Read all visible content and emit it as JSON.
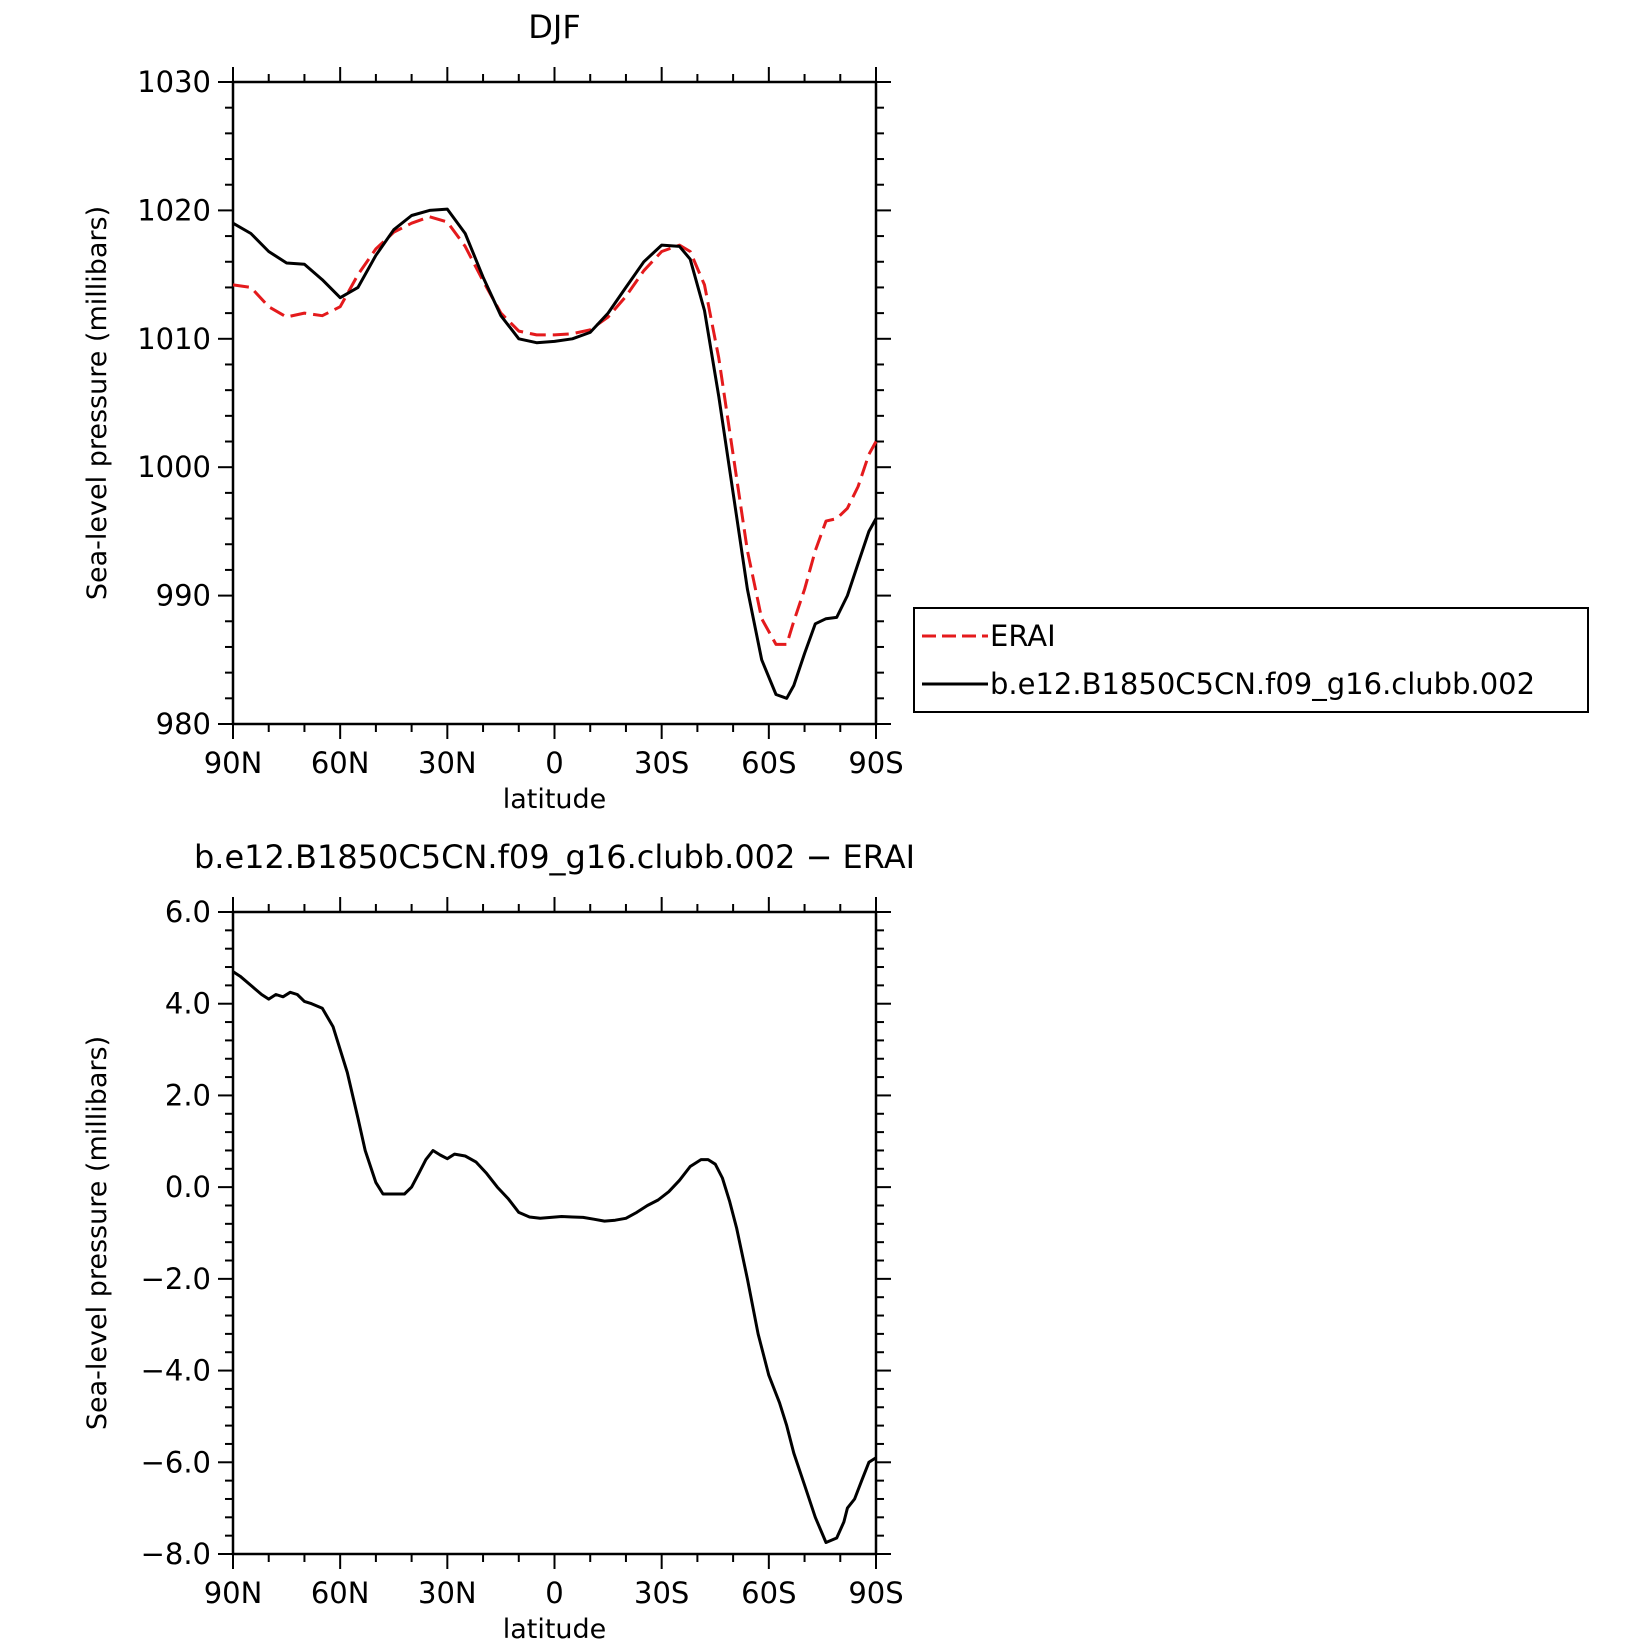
{
  "chart_data": [
    {
      "type": "line",
      "title": "DJF",
      "xlabel": "latitude",
      "ylabel": "Sea-level pressure (millibars)",
      "xlim": [
        90,
        -90
      ],
      "ylim": [
        980,
        1030
      ],
      "x_ticks": [
        {
          "value": 90,
          "label": "90N"
        },
        {
          "value": 60,
          "label": "60N"
        },
        {
          "value": 30,
          "label": "30N"
        },
        {
          "value": 0,
          "label": "0"
        },
        {
          "value": -30,
          "label": "30S"
        },
        {
          "value": -60,
          "label": "60S"
        },
        {
          "value": -90,
          "label": "90S"
        }
      ],
      "y_ticks": [
        {
          "value": 1030,
          "label": "1030"
        },
        {
          "value": 1020,
          "label": "1020"
        },
        {
          "value": 1010,
          "label": "1010"
        },
        {
          "value": 1000,
          "label": "1000"
        },
        {
          "value": 990,
          "label": "990"
        },
        {
          "value": 980,
          "label": "980"
        }
      ],
      "legend": "right",
      "series": [
        {
          "name": "ERAI",
          "color": "#e41a1c",
          "dash": "dashed",
          "x": [
            90,
            85,
            80,
            75,
            70,
            65,
            60,
            55,
            50,
            45,
            40,
            35,
            30,
            25,
            20,
            15,
            10,
            5,
            0,
            -5,
            -10,
            -15,
            -20,
            -25,
            -30,
            -35,
            -38,
            -42,
            -46,
            -50,
            -54,
            -58,
            -62,
            -65,
            -67,
            -70,
            -73,
            -76,
            -79,
            -82,
            -85,
            -88,
            -90
          ],
          "y": [
            1014.2,
            1014.0,
            1012.5,
            1011.7,
            1012.0,
            1011.8,
            1012.5,
            1015.0,
            1017.0,
            1018.3,
            1019.0,
            1019.5,
            1019.1,
            1017.2,
            1014.5,
            1012.0,
            1010.6,
            1010.3,
            1010.3,
            1010.4,
            1010.7,
            1011.7,
            1013.3,
            1015.3,
            1016.8,
            1017.3,
            1016.8,
            1014.2,
            1008.5,
            1001.0,
            993.5,
            988.2,
            986.2,
            986.2,
            988.0,
            990.5,
            993.5,
            995.8,
            996.0,
            996.8,
            998.5,
            1001.0,
            1002.0
          ]
        },
        {
          "name": "b.e12.B1850C5CN.f09_g16.clubb.002",
          "color": "#000000",
          "dash": "solid",
          "x": [
            90,
            85,
            80,
            75,
            70,
            65,
            60,
            55,
            50,
            45,
            40,
            35,
            30,
            25,
            20,
            15,
            10,
            5,
            0,
            -5,
            -10,
            -15,
            -20,
            -25,
            -30,
            -35,
            -38,
            -42,
            -46,
            -50,
            -54,
            -58,
            -62,
            -65,
            -67,
            -70,
            -73,
            -76,
            -79,
            -82,
            -85,
            -88,
            -90
          ],
          "y": [
            1019.0,
            1018.2,
            1016.8,
            1015.9,
            1015.8,
            1014.6,
            1013.2,
            1014.0,
            1016.5,
            1018.5,
            1019.6,
            1020.0,
            1020.1,
            1018.2,
            1014.8,
            1011.8,
            1010.0,
            1009.7,
            1009.8,
            1010.0,
            1010.5,
            1012.0,
            1014.0,
            1016.0,
            1017.3,
            1017.2,
            1016.2,
            1012.2,
            1005.5,
            998.0,
            990.5,
            985.0,
            982.3,
            982.0,
            983.0,
            985.5,
            987.8,
            988.2,
            988.3,
            990.0,
            992.5,
            995.0,
            996.0
          ]
        }
      ]
    },
    {
      "type": "line",
      "title": "b.e12.B1850C5CN.f09_g16.clubb.002 − ERAI",
      "xlabel": "latitude",
      "ylabel": "Sea-level pressure (millibars)",
      "xlim": [
        90,
        -90
      ],
      "ylim": [
        -8.0,
        6.0
      ],
      "x_ticks": [
        {
          "value": 90,
          "label": "90N"
        },
        {
          "value": 60,
          "label": "60N"
        },
        {
          "value": 30,
          "label": "30N"
        },
        {
          "value": 0,
          "label": "0"
        },
        {
          "value": -30,
          "label": "30S"
        },
        {
          "value": -60,
          "label": "60S"
        },
        {
          "value": -90,
          "label": "90S"
        }
      ],
      "y_ticks": [
        {
          "value": 6.0,
          "label": "6.0"
        },
        {
          "value": 4.0,
          "label": "4.0"
        },
        {
          "value": 2.0,
          "label": "2.0"
        },
        {
          "value": 0.0,
          "label": "0.0"
        },
        {
          "value": -2.0,
          "label": "−2.0"
        },
        {
          "value": -4.0,
          "label": "−4.0"
        },
        {
          "value": -6.0,
          "label": "−6.0"
        },
        {
          "value": -8.0,
          "label": "−8.0"
        }
      ],
      "series": [
        {
          "color": "#000000",
          "dash": "solid",
          "x": [
            90,
            88,
            85,
            82,
            80,
            78,
            76,
            74,
            72,
            70,
            68,
            65,
            62,
            58,
            55,
            53,
            50,
            48,
            45,
            42,
            40,
            38,
            36,
            34,
            32,
            30,
            28,
            25,
            22,
            19,
            16,
            13,
            10,
            7,
            4,
            1,
            -2,
            -5,
            -8,
            -11,
            -14,
            -17,
            -20,
            -23,
            -26,
            -29,
            -32,
            -35,
            -38,
            -41,
            -43,
            -45,
            -47,
            -49,
            -51,
            -54,
            -57,
            -60,
            -63,
            -65,
            -67,
            -70,
            -73,
            -76,
            -79,
            -81,
            -82,
            -84,
            -86,
            -88,
            -90
          ],
          "y": [
            4.7,
            4.6,
            4.4,
            4.2,
            4.1,
            4.2,
            4.15,
            4.25,
            4.2,
            4.05,
            4.0,
            3.9,
            3.5,
            2.5,
            1.5,
            0.8,
            0.1,
            -0.15,
            -0.15,
            -0.15,
            0.0,
            0.3,
            0.6,
            0.8,
            0.7,
            0.62,
            0.72,
            0.68,
            0.55,
            0.3,
            0.0,
            -0.25,
            -0.55,
            -0.65,
            -0.68,
            -0.66,
            -0.64,
            -0.65,
            -0.66,
            -0.7,
            -0.74,
            -0.72,
            -0.68,
            -0.55,
            -0.4,
            -0.28,
            -0.1,
            0.15,
            0.45,
            0.6,
            0.6,
            0.5,
            0.2,
            -0.3,
            -0.9,
            -2.0,
            -3.2,
            -4.1,
            -4.7,
            -5.2,
            -5.8,
            -6.5,
            -7.2,
            -7.75,
            -7.65,
            -7.3,
            -7.0,
            -6.8,
            -6.4,
            -6.0,
            -5.9
          ]
        }
      ]
    }
  ]
}
